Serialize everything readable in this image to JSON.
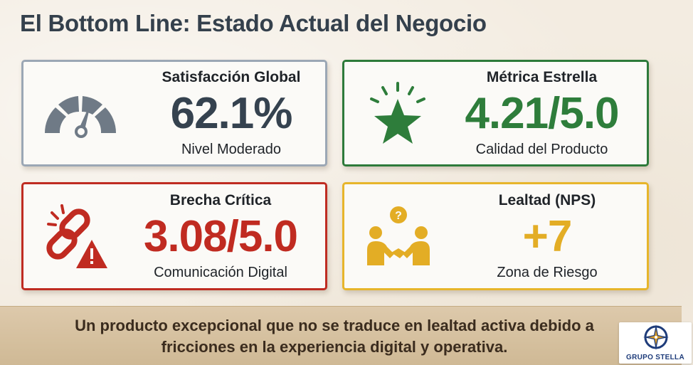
{
  "page": {
    "title": "El Bottom Line: Estado Actual del Negocio"
  },
  "cards": [
    {
      "label": "Satisfacción Global",
      "value": "62.1%",
      "sub": "Nivel Moderado",
      "icon": "gauge-icon",
      "color": "#35424f"
    },
    {
      "label": "Métrica Estrella",
      "value": "4.21/5.0",
      "sub": "Calidad del Producto",
      "icon": "star-icon",
      "color": "#2e7d3b"
    },
    {
      "label": "Brecha Crítica",
      "value": "3.08/5.0",
      "sub": "Comunicación Digital",
      "icon": "broken-link-warning-icon",
      "color": "#c02b21"
    },
    {
      "label": "Lealtad (NPS)",
      "value": "+7",
      "sub": "Zona de Riesgo",
      "icon": "handshake-question-icon",
      "color": "#e3ad25"
    }
  ],
  "banner": {
    "line1": "Un producto excepcional que no se traduce en lealtad activa debido a",
    "line2": "fricciones en la experiencia digital y operativa."
  },
  "logo": {
    "text": "GRUPO STELLA",
    "icon": "compass-rose-icon"
  }
}
